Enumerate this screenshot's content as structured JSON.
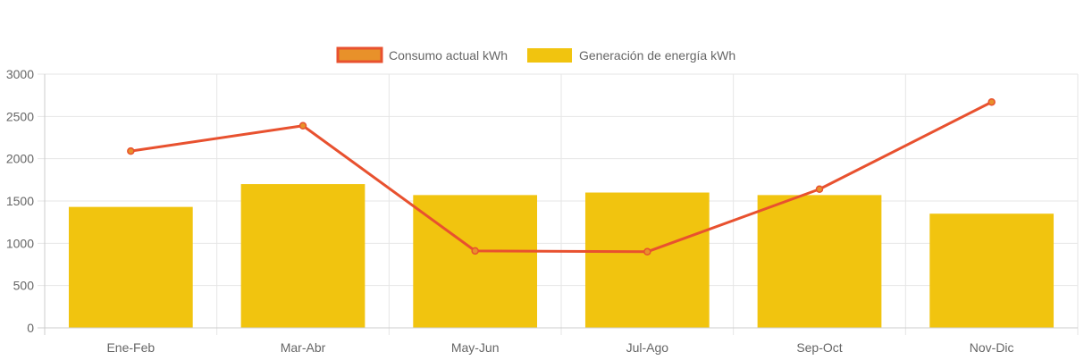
{
  "chart_data": {
    "type": "bar",
    "title": "",
    "xlabel": "",
    "ylabel": "",
    "categories": [
      "Ene-Feb",
      "Mar-Abr",
      "May-Jun",
      "Jul-Ago",
      "Sep-Oct",
      "Nov-Dic"
    ],
    "ylim": [
      0,
      3000
    ],
    "yticks": [
      0,
      500,
      1000,
      1500,
      2000,
      2500,
      3000
    ],
    "grid": true,
    "legend_position": "top-center",
    "series": [
      {
        "name": "Consumo actual kWh",
        "type": "line",
        "values": [
          2090,
          2390,
          910,
          900,
          1640,
          2670
        ],
        "color": "#e8512f",
        "fill": "#e8912a"
      },
      {
        "name": "Generación de energía kWh",
        "type": "bar",
        "values": [
          1430,
          1700,
          1570,
          1600,
          1570,
          1350
        ],
        "color": "#f1c40f"
      }
    ]
  }
}
